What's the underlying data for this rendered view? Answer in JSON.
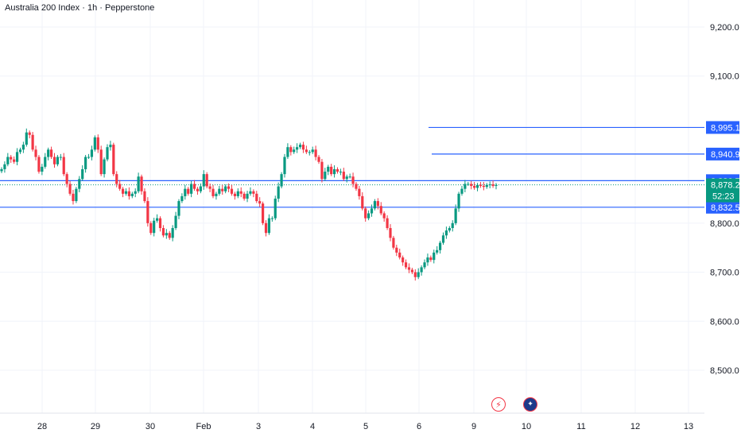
{
  "header": {
    "title": "Australia 200 Index · 1h · Pepperstone"
  },
  "price_axis": {
    "ticks": [
      "9,200.0",
      "9,100.0",
      "8,800.0",
      "8,700.0",
      "8,600.0",
      "8,500.0"
    ],
    "tick_values": [
      9200,
      9100,
      8800,
      8700,
      8600,
      8500
    ]
  },
  "time_axis": {
    "labels": [
      "28",
      "29",
      "30",
      "Feb",
      "3",
      "4",
      "5",
      "6",
      "9",
      "10",
      "11",
      "12",
      "13"
    ]
  },
  "levels": [
    {
      "label": "8,995.1",
      "value": 8995.1,
      "line_color": "#2962ff",
      "partial": true,
      "from": "6"
    },
    {
      "label": "8,940.9",
      "value": 8940.9,
      "line_color": "#2962ff",
      "partial": true,
      "from": "6"
    },
    {
      "label": "8,886.7",
      "value": 8886.7,
      "line_color": "#2962ff",
      "partial": false
    },
    {
      "label": "8,832.5",
      "value": 8832.5,
      "line_color": "#2962ff",
      "partial": false
    }
  ],
  "current_price": {
    "label": "8,878.2",
    "countdown": "52:23",
    "value": 8878.2,
    "color": "#089981"
  },
  "colors": {
    "up": "#089981",
    "down": "#f23645",
    "level": "#2962ff",
    "grid": "#f0f3fa"
  },
  "bottom_icons": [
    {
      "name": "lightning-icon",
      "color": "#f23645"
    },
    {
      "name": "flag-au-icon",
      "color": "#f23645"
    }
  ],
  "chart_data": {
    "type": "candlestick",
    "title": "Australia 200 Index · 1h · Pepperstone",
    "ylim": [
      8460,
      9240
    ],
    "session_labels": [
      "28",
      "29",
      "30",
      "Feb",
      "3",
      "4",
      "5",
      "6",
      "9"
    ],
    "sessions": [
      [
        8910,
        8920,
        8935,
        8930,
        8925,
        8945,
        8950,
        8960,
        8985,
        8980
      ],
      [
        8950,
        8935,
        8905,
        8915,
        8935,
        8950,
        8935,
        8920,
        8935,
        8935
      ],
      [
        8900,
        8880,
        8860,
        8845,
        8870,
        8890,
        8910,
        8935,
        8935,
        8950
      ],
      [
        8975,
        8950,
        8900,
        8930,
        8955,
        8960,
        8900,
        8880,
        8870,
        8860
      ],
      [
        8865,
        8855,
        8860,
        8865,
        8895,
        8865,
        8845,
        8800,
        8780,
        8805
      ],
      [
        8810,
        8790,
        8775,
        8780,
        8770,
        8790,
        8815,
        8845,
        8855,
        8870
      ],
      [
        8860,
        8880,
        8870,
        8865,
        8875,
        8900,
        8875,
        8870,
        8855,
        8860
      ],
      [
        8870,
        8865,
        8875,
        8870,
        8860,
        8855,
        8865,
        8860,
        8850,
        8860
      ],
      [
        8865,
        8860,
        8845,
        8840,
        8800,
        8780,
        8810,
        8810,
        8850,
        8875
      ],
      [
        8900,
        8935,
        8955,
        8945,
        8950,
        8955,
        8960,
        8950,
        8945,
        8945
      ],
      [
        8950,
        8935,
        8925,
        8890,
        8905,
        8915,
        8900,
        8910,
        8905,
        8905
      ],
      [
        8890,
        8895,
        8895,
        8880,
        8870,
        8855,
        8830,
        8810,
        8820,
        8830
      ],
      [
        8845,
        8835,
        8820,
        8810,
        8790,
        8770,
        8750,
        8740,
        8730,
        8720
      ],
      [
        8710,
        8705,
        8700,
        8690,
        8700,
        8710,
        8720,
        8730,
        8725,
        8740
      ],
      [
        8745,
        8760,
        8775,
        8785,
        8790,
        8800,
        8830,
        8860,
        8870,
        8880
      ],
      [
        8880,
        8876,
        8872,
        8878,
        8876,
        8874,
        8878,
        8879,
        8876,
        8878
      ]
    ]
  }
}
